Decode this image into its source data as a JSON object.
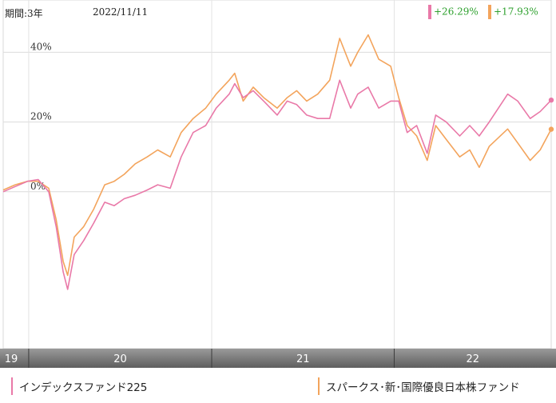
{
  "header": {
    "period": "期間:3年",
    "date": "2022/11/11",
    "returns": [
      {
        "text": "+26.29%",
        "color": "#e979a8"
      },
      {
        "text": "+17.93%",
        "color": "#f3a45c"
      }
    ]
  },
  "legend": [
    {
      "label": "インデックスファンド225",
      "color": "#e979a8"
    },
    {
      "label": "スパークス･新･国際優良日本株ファンド",
      "color": "#f3a45c"
    }
  ],
  "chart_data": {
    "type": "line",
    "x_range": [
      "2019-11-11",
      "2022-11-11"
    ],
    "ylim": [
      -45,
      55
    ],
    "y_ticks": [
      {
        "v": 40,
        "label": "40%"
      },
      {
        "v": 20,
        "label": "20%"
      },
      {
        "v": 0,
        "label": "0%"
      }
    ],
    "x_ticks": [
      {
        "date": "2019-11-11",
        "label": "19"
      },
      {
        "date": "2020-01-01",
        "label": "20"
      },
      {
        "date": "2021-01-01",
        "label": "21"
      },
      {
        "date": "2022-01-01",
        "label": "22"
      }
    ],
    "grid": true,
    "series": [
      {
        "name": "インデックスファンド225",
        "color": "#e979a8",
        "values": [
          [
            "2019-11-11",
            0
          ],
          [
            "2019-12-05",
            1.5
          ],
          [
            "2019-12-30",
            3
          ],
          [
            "2020-01-20",
            3.5
          ],
          [
            "2020-02-10",
            0
          ],
          [
            "2020-02-25",
            -10
          ],
          [
            "2020-03-10",
            -23
          ],
          [
            "2020-03-19",
            -28
          ],
          [
            "2020-04-01",
            -18
          ],
          [
            "2020-04-20",
            -14
          ],
          [
            "2020-05-10",
            -9
          ],
          [
            "2020-06-01",
            -3
          ],
          [
            "2020-06-20",
            -4
          ],
          [
            "2020-07-10",
            -2
          ],
          [
            "2020-08-01",
            -1
          ],
          [
            "2020-08-25",
            0.5
          ],
          [
            "2020-09-15",
            2
          ],
          [
            "2020-10-10",
            1
          ],
          [
            "2020-11-01",
            10
          ],
          [
            "2020-11-25",
            17
          ],
          [
            "2020-12-20",
            19
          ],
          [
            "2021-01-10",
            24
          ],
          [
            "2021-02-05",
            28
          ],
          [
            "2021-02-16",
            31
          ],
          [
            "2021-03-05",
            27
          ],
          [
            "2021-03-25",
            29
          ],
          [
            "2021-04-15",
            26
          ],
          [
            "2021-05-12",
            22
          ],
          [
            "2021-06-01",
            26
          ],
          [
            "2021-06-20",
            25
          ],
          [
            "2021-07-10",
            22
          ],
          [
            "2021-08-01",
            21
          ],
          [
            "2021-08-25",
            21
          ],
          [
            "2021-09-14",
            32
          ],
          [
            "2021-10-06",
            24
          ],
          [
            "2021-10-20",
            28
          ],
          [
            "2021-11-10",
            30
          ],
          [
            "2021-12-01",
            24
          ],
          [
            "2021-12-25",
            26
          ],
          [
            "2022-01-10",
            26
          ],
          [
            "2022-01-27",
            17
          ],
          [
            "2022-02-15",
            19
          ],
          [
            "2022-03-08",
            11
          ],
          [
            "2022-03-25",
            22
          ],
          [
            "2022-04-15",
            20
          ],
          [
            "2022-05-12",
            16
          ],
          [
            "2022-06-01",
            19
          ],
          [
            "2022-06-20",
            16
          ],
          [
            "2022-07-10",
            20
          ],
          [
            "2022-08-16",
            28
          ],
          [
            "2022-09-05",
            26
          ],
          [
            "2022-09-30",
            21
          ],
          [
            "2022-10-20",
            23
          ],
          [
            "2022-11-11",
            26.29
          ]
        ]
      },
      {
        "name": "スパークス･新･国際優良日本株ファンド",
        "color": "#f3a45c",
        "values": [
          [
            "2019-11-11",
            0.5
          ],
          [
            "2019-12-05",
            2
          ],
          [
            "2019-12-30",
            3
          ],
          [
            "2020-01-20",
            3
          ],
          [
            "2020-02-10",
            1
          ],
          [
            "2020-02-25",
            -8
          ],
          [
            "2020-03-10",
            -20
          ],
          [
            "2020-03-19",
            -24
          ],
          [
            "2020-04-01",
            -13
          ],
          [
            "2020-04-20",
            -10
          ],
          [
            "2020-05-10",
            -5
          ],
          [
            "2020-06-01",
            2
          ],
          [
            "2020-06-20",
            3
          ],
          [
            "2020-07-10",
            5
          ],
          [
            "2020-08-01",
            8
          ],
          [
            "2020-08-25",
            10
          ],
          [
            "2020-09-15",
            12
          ],
          [
            "2020-10-10",
            10
          ],
          [
            "2020-11-01",
            17
          ],
          [
            "2020-11-25",
            21
          ],
          [
            "2020-12-20",
            24
          ],
          [
            "2021-01-10",
            28
          ],
          [
            "2021-02-05",
            32
          ],
          [
            "2021-02-16",
            34
          ],
          [
            "2021-03-05",
            26
          ],
          [
            "2021-03-25",
            30
          ],
          [
            "2021-04-15",
            27
          ],
          [
            "2021-05-12",
            24
          ],
          [
            "2021-06-01",
            27
          ],
          [
            "2021-06-20",
            29
          ],
          [
            "2021-07-10",
            26
          ],
          [
            "2021-08-01",
            28
          ],
          [
            "2021-08-25",
            32
          ],
          [
            "2021-09-14",
            44
          ],
          [
            "2021-10-06",
            36
          ],
          [
            "2021-10-20",
            40
          ],
          [
            "2021-11-10",
            45
          ],
          [
            "2021-12-01",
            38
          ],
          [
            "2021-12-25",
            36
          ],
          [
            "2022-01-10",
            27
          ],
          [
            "2022-01-27",
            19
          ],
          [
            "2022-02-15",
            16
          ],
          [
            "2022-03-08",
            9
          ],
          [
            "2022-03-25",
            19
          ],
          [
            "2022-04-15",
            15
          ],
          [
            "2022-05-12",
            10
          ],
          [
            "2022-06-01",
            12
          ],
          [
            "2022-06-20",
            7
          ],
          [
            "2022-07-10",
            13
          ],
          [
            "2022-08-16",
            18
          ],
          [
            "2022-09-05",
            14
          ],
          [
            "2022-09-30",
            9
          ],
          [
            "2022-10-20",
            12
          ],
          [
            "2022-11-11",
            17.93
          ]
        ]
      }
    ]
  }
}
